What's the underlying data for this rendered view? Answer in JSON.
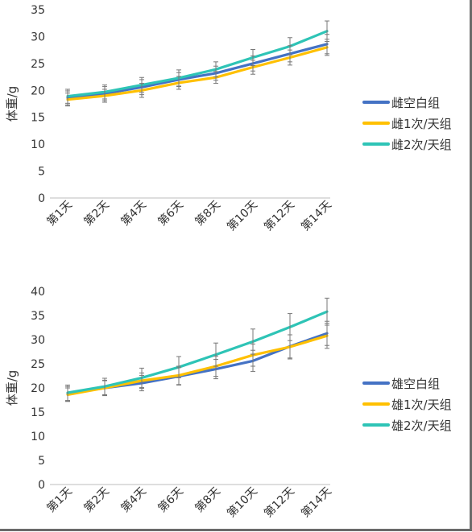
{
  "chart_data": [
    {
      "type": "line",
      "title": "",
      "xlabel": "",
      "ylabel": "体重/g",
      "ylim": [
        0,
        35
      ],
      "yticks": [
        0,
        5,
        10,
        15,
        20,
        25,
        30,
        35
      ],
      "categories": [
        "第1天",
        "第2天",
        "第4天",
        "第6天",
        "第8天",
        "第10天",
        "第12天",
        "第14天"
      ],
      "grid": false,
      "legend_position": "right",
      "series": [
        {
          "name": "雌空白组",
          "color": "#4472C4",
          "values": [
            18.6,
            19.4,
            20.6,
            22.0,
            23.2,
            25.0,
            26.8,
            28.6
          ],
          "errors": [
            1.3,
            1.3,
            1.4,
            1.3,
            1.3,
            1.4,
            1.5,
            1.8
          ]
        },
        {
          "name": "雌1次/天组",
          "color": "#FFC000",
          "values": [
            18.3,
            19.0,
            20.0,
            21.4,
            22.4,
            24.3,
            26.1,
            28.0
          ],
          "errors": [
            1.2,
            1.2,
            1.3,
            1.2,
            1.1,
            1.3,
            1.4,
            1.5
          ]
        },
        {
          "name": "雌2次/天组",
          "color": "#2EC4B6",
          "values": [
            18.9,
            19.7,
            21.0,
            22.3,
            23.9,
            26.1,
            28.2,
            31.0
          ],
          "errors": [
            1.3,
            1.3,
            1.4,
            1.5,
            1.4,
            1.5,
            1.6,
            1.9
          ]
        }
      ]
    },
    {
      "type": "line",
      "title": "",
      "xlabel": "",
      "ylabel": "体重/g",
      "ylim": [
        0,
        40
      ],
      "yticks": [
        0,
        5,
        10,
        15,
        20,
        25,
        30,
        35,
        40
      ],
      "categories": [
        "第1天",
        "第2天",
        "第4天",
        "第6天",
        "第8天",
        "第10天",
        "第12天",
        "第14天"
      ],
      "grid": false,
      "legend_position": "right",
      "series": [
        {
          "name": "雄空白组",
          "color": "#4472C4",
          "values": [
            18.8,
            20.0,
            21.0,
            22.4,
            23.9,
            25.6,
            28.6,
            31.3
          ],
          "errors": [
            1.5,
            1.6,
            1.6,
            1.8,
            2.0,
            2.2,
            2.4,
            2.5
          ]
        },
        {
          "name": "雄1次/天组",
          "color": "#FFC000",
          "values": [
            18.6,
            20.0,
            21.5,
            22.6,
            24.5,
            26.8,
            28.5,
            30.8
          ],
          "errors": [
            1.4,
            1.5,
            1.6,
            1.9,
            2.1,
            2.3,
            2.5,
            2.6
          ]
        },
        {
          "name": "雄2次/天组",
          "color": "#2EC4B6",
          "values": [
            19.0,
            20.3,
            22.1,
            24.3,
            26.9,
            29.6,
            32.6,
            35.8
          ],
          "errors": [
            1.6,
            1.7,
            2.0,
            2.2,
            2.4,
            2.6,
            2.8,
            2.8
          ]
        }
      ]
    }
  ]
}
